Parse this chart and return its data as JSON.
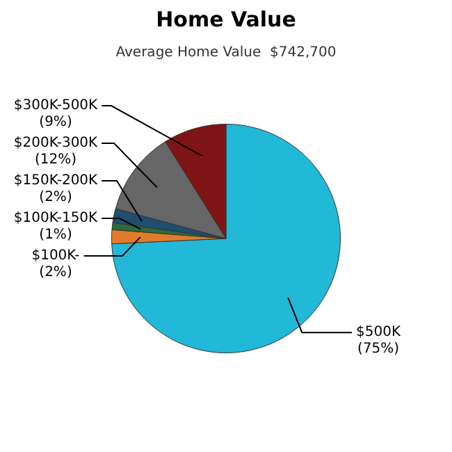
{
  "chart_data": {
    "type": "pie",
    "title": "Home Value",
    "subtitle": "Average Home Value  $742,700",
    "categories": [
      "$500K",
      "$100K-",
      "$100K-150K",
      "$150K-200K",
      "$200K-300K",
      "$300K-500K"
    ],
    "values": [
      75,
      2,
      1,
      2,
      12,
      9
    ],
    "value_labels": [
      "(75%)",
      "(2%)",
      "(1%)",
      "(2%)",
      "(12%)",
      "(9%)"
    ],
    "colors": [
      "#22b8d8",
      "#e07b2a",
      "#2f6b3a",
      "#1f4e6e",
      "#666666",
      "#7f1416"
    ],
    "legend": false
  }
}
